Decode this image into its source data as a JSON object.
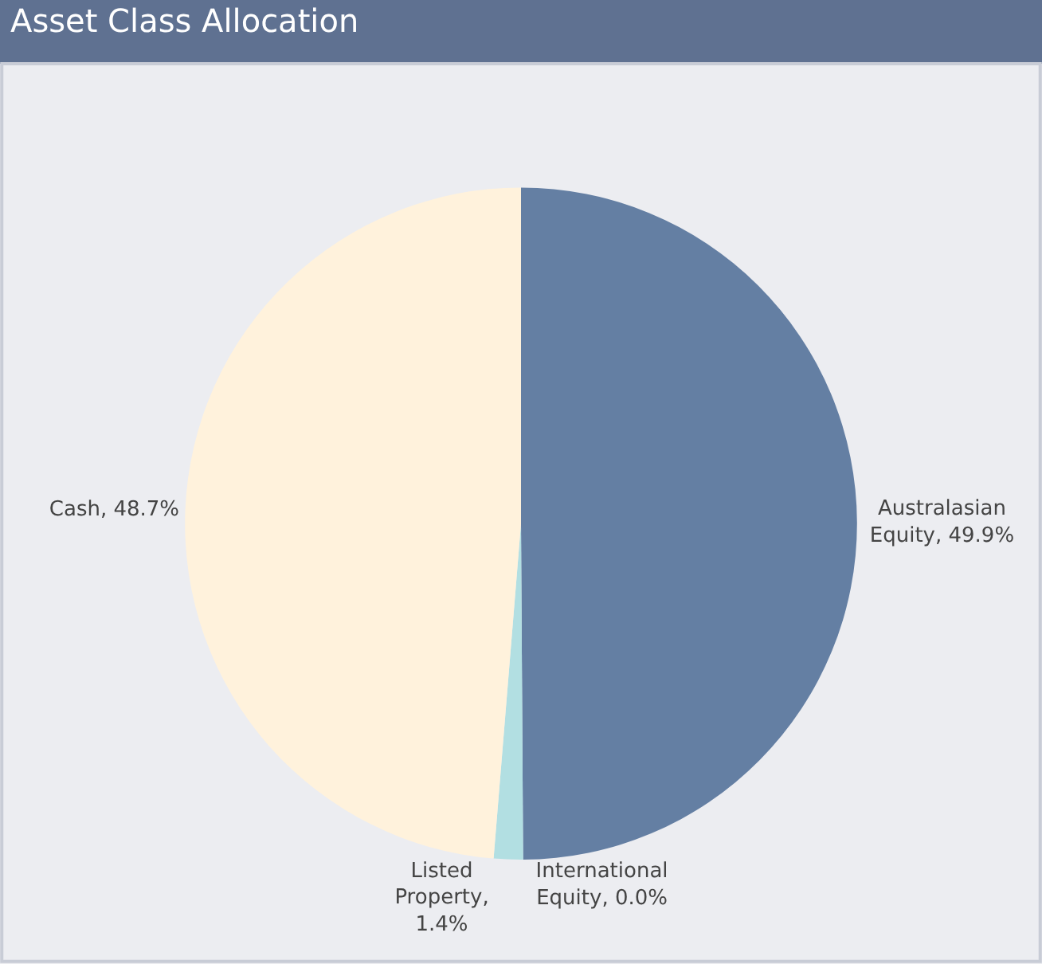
{
  "chart_data": {
    "type": "pie",
    "title": "Asset Class Allocation",
    "categories": [
      "Australasian Equity, 49.9%",
      "International Equity, 0.0%",
      "Listed Property, 1.4%",
      "Cash, 48.7%"
    ],
    "values": [
      49.9,
      0.0,
      1.4,
      48.7
    ],
    "colors": [
      "#647fa3",
      "#5a6f91",
      "#b2dfe2",
      "#fff2dc"
    ],
    "legend": false
  }
}
